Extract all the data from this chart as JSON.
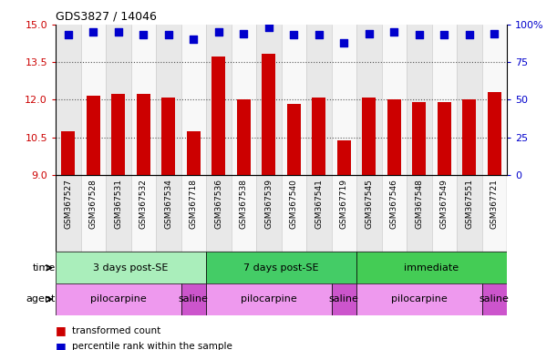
{
  "title": "GDS3827 / 14046",
  "samples": [
    "GSM367527",
    "GSM367528",
    "GSM367531",
    "GSM367532",
    "GSM367534",
    "GSM367718",
    "GSM367536",
    "GSM367538",
    "GSM367539",
    "GSM367540",
    "GSM367541",
    "GSM367719",
    "GSM367545",
    "GSM367546",
    "GSM367548",
    "GSM367549",
    "GSM367551",
    "GSM367721"
  ],
  "transformed_counts": [
    10.75,
    12.15,
    12.25,
    12.22,
    12.1,
    10.75,
    13.72,
    12.02,
    13.82,
    11.85,
    12.1,
    10.38,
    12.1,
    12.02,
    11.92,
    11.92,
    12.02,
    12.32
  ],
  "percentile_ranks": [
    93,
    95,
    95,
    93,
    93,
    90,
    95,
    94,
    98,
    93,
    93,
    88,
    94,
    95,
    93,
    93,
    93,
    94
  ],
  "ylim_left": [
    9,
    15
  ],
  "ylim_right": [
    0,
    100
  ],
  "yticks_left": [
    9,
    10.5,
    12,
    13.5,
    15
  ],
  "yticks_right": [
    0,
    25,
    50,
    75,
    100
  ],
  "bar_color": "#cc0000",
  "dot_color": "#0000cc",
  "bar_width": 0.55,
  "time_groups": [
    {
      "label": "3 days post-SE",
      "start": 0,
      "end": 5,
      "color": "#aaeebb"
    },
    {
      "label": "7 days post-SE",
      "start": 6,
      "end": 11,
      "color": "#44cc66"
    },
    {
      "label": "immediate",
      "start": 12,
      "end": 17,
      "color": "#44cc55"
    }
  ],
  "agent_groups": [
    {
      "label": "pilocarpine",
      "start": 0,
      "end": 4,
      "color": "#ee99ee"
    },
    {
      "label": "saline",
      "start": 5,
      "end": 5,
      "color": "#cc55cc"
    },
    {
      "label": "pilocarpine",
      "start": 6,
      "end": 10,
      "color": "#ee99ee"
    },
    {
      "label": "saline",
      "start": 11,
      "end": 11,
      "color": "#cc55cc"
    },
    {
      "label": "pilocarpine",
      "start": 12,
      "end": 16,
      "color": "#ee99ee"
    },
    {
      "label": "saline",
      "start": 17,
      "end": 17,
      "color": "#cc55cc"
    }
  ],
  "legend_items": [
    {
      "label": "transformed count",
      "color": "#cc0000"
    },
    {
      "label": "percentile rank within the sample",
      "color": "#0000cc"
    }
  ],
  "grid_color": "#555555",
  "bg_color": "#ffffff",
  "col_sep_color": "#cccccc",
  "tick_color_left": "#cc0000",
  "tick_color_right": "#0000cc",
  "dot_size": 35,
  "xlabel_fontsize": 6.5,
  "ylabel_fontsize": 8,
  "title_fontsize": 9,
  "annot_fontsize": 8
}
